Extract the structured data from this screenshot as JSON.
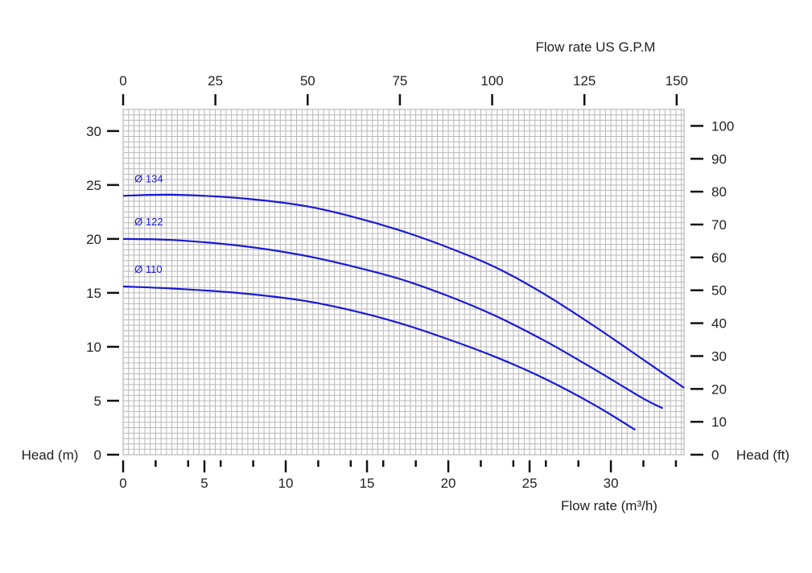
{
  "chart_data": {
    "type": "line",
    "grid": true,
    "curve_color": "#1a1ad6",
    "grid_color": "#b8b8b8",
    "x_bottom": {
      "label": "Flow rate  (m³/h)",
      "range": [
        0,
        34.5
      ],
      "ticks": [
        0,
        5,
        10,
        15,
        20,
        25,
        30
      ],
      "minor_ticks": [
        2,
        4,
        6,
        8,
        10,
        12,
        14,
        16,
        18,
        20,
        22,
        24,
        26,
        28,
        30,
        32,
        34
      ]
    },
    "x_top": {
      "label": "Flow rate US  G.P.M",
      "range": [
        0,
        152
      ],
      "ticks": [
        0,
        25,
        50,
        75,
        100,
        125,
        150
      ]
    },
    "y_left": {
      "label": "Head (m)",
      "range": [
        0,
        32
      ],
      "ticks": [
        0,
        5,
        10,
        15,
        20,
        25,
        30
      ]
    },
    "y_right": {
      "label": "Head (ft)",
      "range": [
        0,
        105
      ],
      "ticks": [
        0,
        10,
        20,
        30,
        40,
        50,
        60,
        70,
        80,
        90,
        100
      ]
    },
    "series": [
      {
        "name": "Ø 134",
        "x": [
          0,
          3,
          7,
          11,
          14,
          17,
          20,
          23,
          26,
          29,
          32,
          34.5
        ],
        "y": [
          24,
          24.1,
          23.8,
          23.1,
          22.1,
          20.8,
          19.2,
          17.3,
          14.8,
          11.9,
          8.8,
          6.2
        ]
      },
      {
        "name": "Ø 122",
        "x": [
          0,
          3,
          7,
          11,
          14,
          17,
          20,
          23,
          26,
          29,
          32,
          33.2
        ],
        "y": [
          20,
          19.9,
          19.4,
          18.5,
          17.5,
          16.3,
          14.7,
          12.8,
          10.5,
          7.9,
          5.2,
          4.3
        ]
      },
      {
        "name": "Ø 110",
        "x": [
          0,
          3,
          7,
          11,
          14,
          17,
          20,
          23,
          26,
          29,
          31.5
        ],
        "y": [
          15.6,
          15.4,
          15,
          14.3,
          13.4,
          12.2,
          10.7,
          9,
          7,
          4.6,
          2.3
        ]
      }
    ]
  }
}
